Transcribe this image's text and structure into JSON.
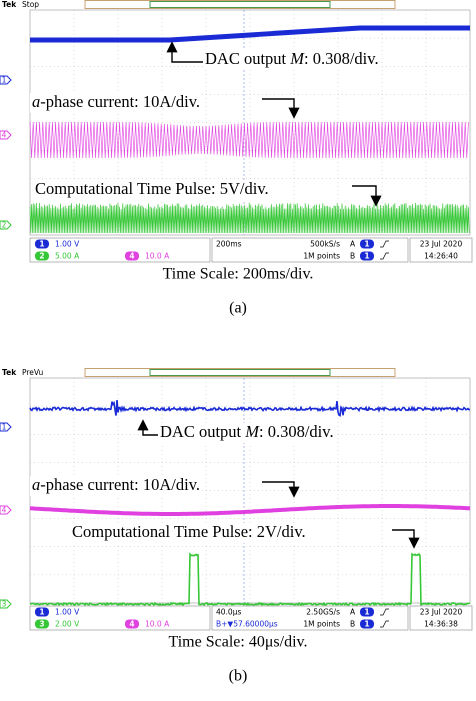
{
  "panels": [
    {
      "header": {
        "brand": "Tek",
        "state": "Stop"
      },
      "annotations": [
        [
          "DAC output ",
          "M",
          ": 0.308/div."
        ],
        [
          "a",
          "-phase current: 10A/div."
        ],
        [
          "Computational Time Pulse: 5V/div."
        ]
      ],
      "channel_markers": [
        {
          "id": "1",
          "color": "#1a2bd6"
        },
        {
          "id": "4",
          "color": "#e040e0"
        },
        {
          "id": "2",
          "color": "#36c736"
        }
      ],
      "status": {
        "channels": [
          {
            "id": "1",
            "scale": "1.00 V",
            "color": "#1a2bd6"
          },
          {
            "id": "2",
            "scale": "5.00 A",
            "color": "#36c736"
          },
          {
            "id": "4",
            "scale": "10.0 A",
            "color": "#e040e0"
          }
        ],
        "timebase": "200ms",
        "sample_rate": "500kS/s",
        "points": "1M points",
        "trigger": [
          {
            "source": "A",
            "channel": "1"
          },
          {
            "source": "B",
            "channel": "1"
          }
        ],
        "date": "23 Jul 2020",
        "time": "14:26:40"
      },
      "caption": "Time Scale: 200ms/div.",
      "label": "(a)"
    },
    {
      "header": {
        "brand": "Tek",
        "state": "PreVu"
      },
      "annotations": [
        [
          "DAC output ",
          "M",
          ": 0.308/div."
        ],
        [
          "a",
          "-phase current: 10A/div."
        ],
        [
          "Computational Time Pulse: 2V/div."
        ]
      ],
      "channel_markers": [
        {
          "id": "1",
          "color": "#1a2bd6"
        },
        {
          "id": "4",
          "color": "#e040e0"
        },
        {
          "id": "3",
          "color": "#36c736"
        }
      ],
      "status": {
        "channels": [
          {
            "id": "1",
            "scale": "1.00 V",
            "color": "#1a2bd6"
          },
          {
            "id": "3",
            "scale": "2.00 V",
            "color": "#36c736"
          },
          {
            "id": "4",
            "scale": "10.0 A",
            "color": "#e040e0"
          }
        ],
        "timebase": "40.0µs",
        "delay": "B+▼57.60000µs",
        "sample_rate": "2.50GS/s",
        "points": "1M points",
        "trigger": [
          {
            "source": "A",
            "channel": "1"
          },
          {
            "source": "B",
            "channel": "1"
          }
        ],
        "date": "23 Jul 2020",
        "time": "14:36:38"
      },
      "caption": "Time Scale: 40μs/div.",
      "label": "(b)"
    }
  ]
}
